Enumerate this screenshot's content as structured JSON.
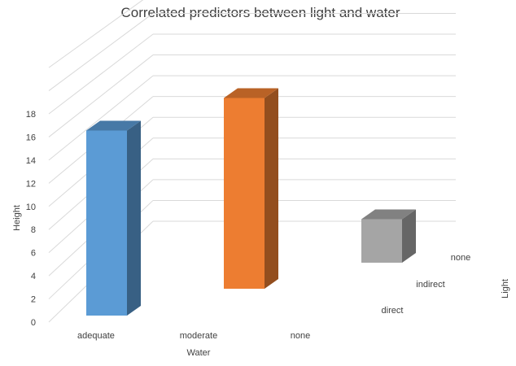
{
  "chart_data": {
    "type": "bar",
    "variant": "3d-column",
    "title": "Correlated predictors between light and water",
    "ylabel": "Height",
    "xlabel": "Water",
    "zlabel": "Light",
    "ylim": [
      0,
      18
    ],
    "yticks": [
      "0",
      "2",
      "4",
      "6",
      "8",
      "10",
      "12",
      "14",
      "16",
      "18"
    ],
    "categories": [
      "adequate",
      "moderate",
      "none"
    ],
    "depth_categories": [
      "direct",
      "indirect",
      "none"
    ],
    "grid": true,
    "bars": [
      {
        "water": "adequate",
        "light": "none",
        "base": 0,
        "value": 16,
        "color": "#5b9bd5"
      },
      {
        "water": "moderate",
        "light": "none",
        "base": 2,
        "value": 19,
        "color": "#ed7d31"
      },
      {
        "water": "none",
        "light": "indirect",
        "base": 5,
        "value": 9,
        "color": "#a5a5a5"
      }
    ]
  }
}
